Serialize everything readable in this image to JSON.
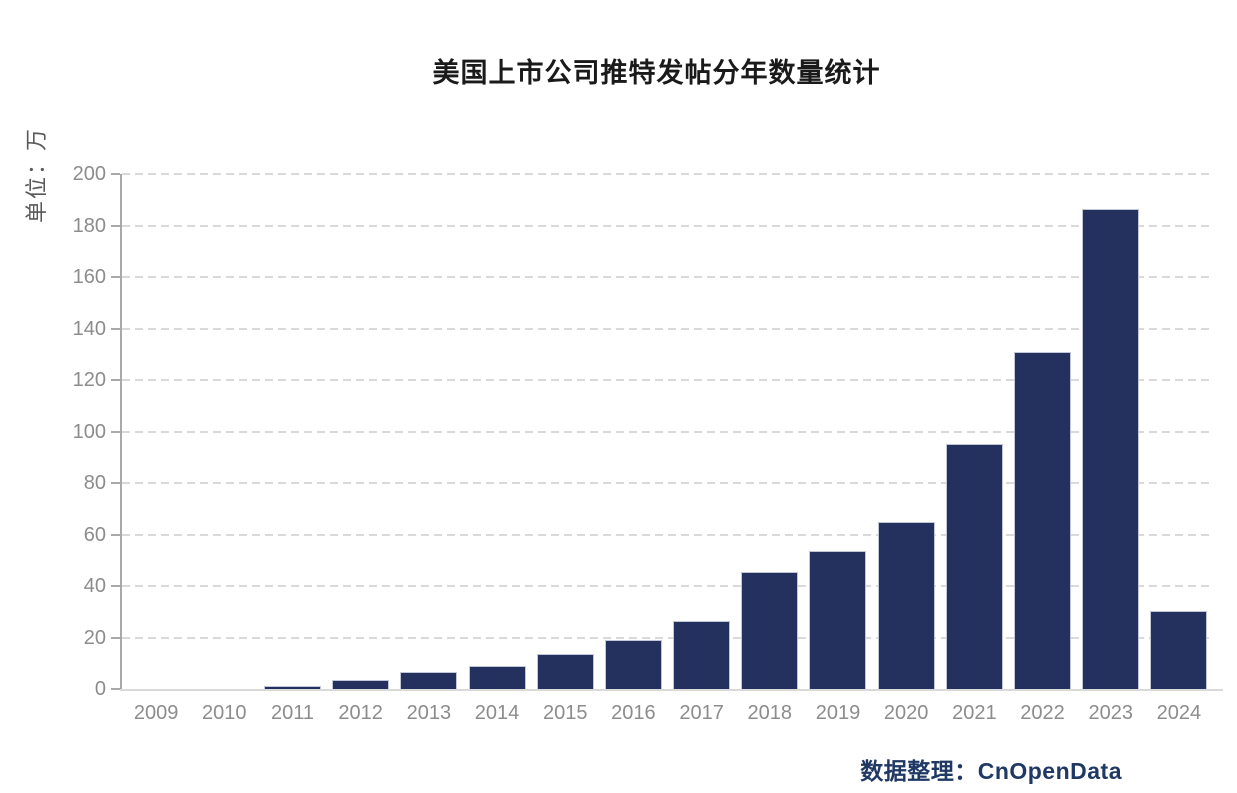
{
  "colors": {
    "bar_fill": "#24315f",
    "bar_edge": "#c2c7d6",
    "grid_line": "#d9d9d9",
    "axis_line": "#a9a9a9",
    "baseline": "#d9d9d9",
    "tick_label": "#8c8c8c",
    "title_text": "#1a1a1a",
    "ylabel_text": "#595959",
    "footer_text": "#1f3864"
  },
  "chart_data": {
    "type": "bar",
    "title": "美国上市公司推特发帖分年数量统计",
    "ylabel": "单位：万",
    "xlabel": "",
    "categories": [
      "2009",
      "2010",
      "2011",
      "2012",
      "2013",
      "2014",
      "2015",
      "2016",
      "2017",
      "2018",
      "2019",
      "2020",
      "2021",
      "2022",
      "2023",
      "2024"
    ],
    "values": [
      0,
      0,
      1,
      3.5,
      6.5,
      9,
      13.5,
      19,
      26.5,
      45.5,
      53.5,
      65,
      95,
      131,
      186.5,
      30.5
    ],
    "ylim": [
      0,
      200
    ],
    "yticks": [
      0,
      20,
      40,
      60,
      80,
      100,
      120,
      140,
      160,
      180,
      200
    ],
    "grid": "horizontal-dashed",
    "legend": "none",
    "source_note": "数据整理：CnOpenData"
  }
}
